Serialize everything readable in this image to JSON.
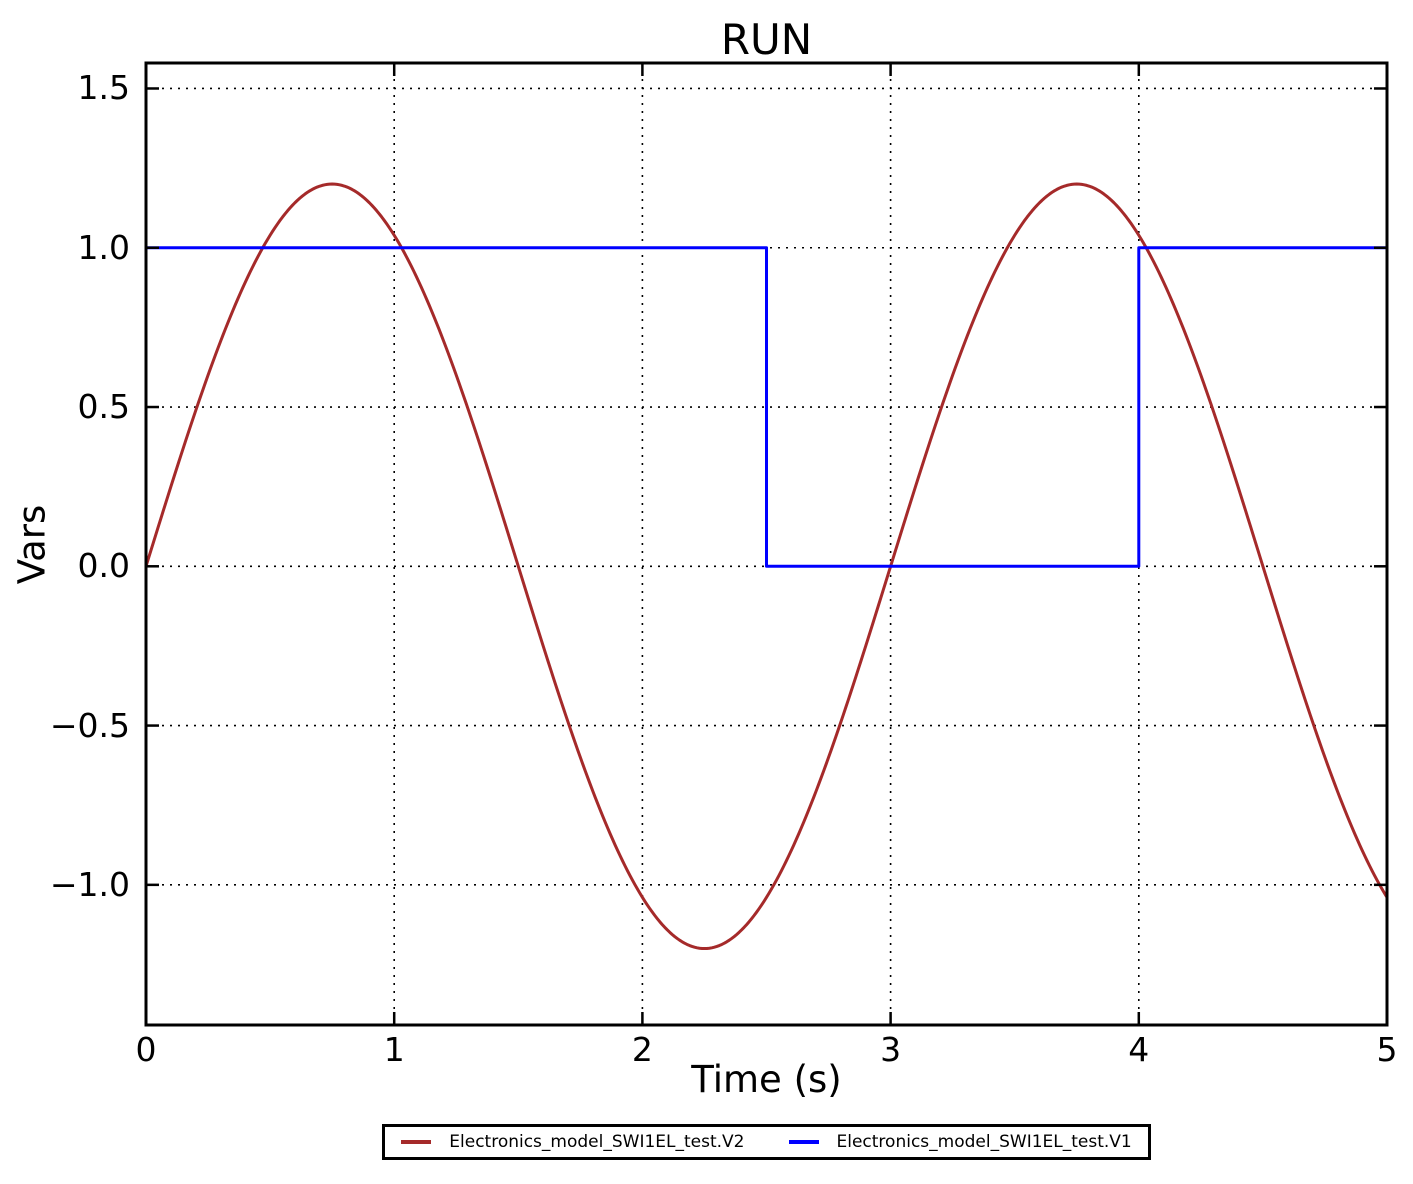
{
  "chart_data": {
    "type": "line",
    "title": "RUN",
    "xlabel": "Time (s)",
    "ylabel": "Vars",
    "xlim": [
      0,
      5
    ],
    "ylim": [
      -1.44,
      1.58
    ],
    "xticks": [
      0,
      1,
      2,
      3,
      4,
      5
    ],
    "xtick_labels": [
      "0",
      "1",
      "2",
      "3",
      "4",
      "5"
    ],
    "yticks": [
      1.5,
      1.0,
      0.5,
      0.0,
      -0.5,
      -1.0
    ],
    "ytick_labels": [
      "1.5",
      "1.0",
      "0.5",
      "0.0",
      "−0.5",
      "−1.0"
    ],
    "grid": {
      "visible": true,
      "style": "dotted",
      "color": "#000000"
    },
    "legend": {
      "position": "bottom-center-outside",
      "border_color": "#000000",
      "background": "#ffffff"
    },
    "series": [
      {
        "name": "Electronics_model_SWI1EL_test.V2",
        "color": "#a52a2a",
        "shape": "sine",
        "amplitude": 1.2,
        "period_s": 3,
        "phase": 0,
        "t_range": [
          0,
          5
        ],
        "key_points": [
          [
            0,
            0
          ],
          [
            0.75,
            1.2
          ],
          [
            1.5,
            0
          ],
          [
            2.25,
            -1.2
          ],
          [
            3,
            0
          ],
          [
            3.75,
            1.2
          ],
          [
            5,
            -1.04
          ]
        ]
      },
      {
        "name": "Electronics_model_SWI1EL_test.V1",
        "color": "#0000ff",
        "shape": "steps",
        "points": [
          [
            0,
            1
          ],
          [
            2.5,
            1
          ],
          [
            2.5,
            0
          ],
          [
            4,
            0
          ],
          [
            4,
            1
          ],
          [
            5,
            1
          ]
        ]
      }
    ]
  },
  "colors": {
    "background": "#ffffff",
    "text": "#000000",
    "axis": "#000000"
  }
}
